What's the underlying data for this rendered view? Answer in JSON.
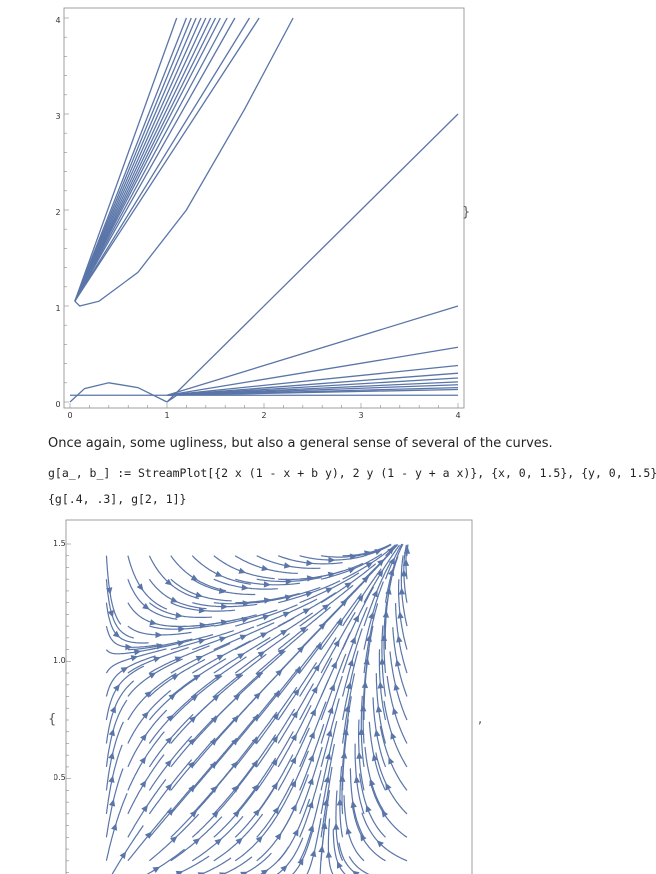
{
  "chart_data": [
    {
      "type": "line",
      "title": "",
      "xlabel": "",
      "ylabel": "",
      "xlim": [
        0,
        4
      ],
      "ylim": [
        0,
        4
      ],
      "x_ticks": [
        "0",
        "1",
        "2",
        "3",
        "4"
      ],
      "y_ticks": [
        "0",
        "1",
        "2",
        "3",
        "4"
      ],
      "line_color": "#5a75a8",
      "series": [
        {
          "x": [
            0,
            0.15,
            0.4,
            0.7,
            1.0
          ],
          "y": [
            0.0,
            0.14,
            0.2,
            0.15,
            0.0
          ]
        },
        {
          "x": [
            0,
            1.0
          ],
          "y": [
            0.07,
            0.07
          ]
        },
        {
          "x": [
            1.0,
            1.1,
            4.0
          ],
          "y": [
            0.0,
            0.07,
            0.07
          ]
        },
        {
          "x": [
            1.0,
            4.0
          ],
          "y": [
            0.0,
            3.0
          ]
        },
        {
          "x": [
            1.0,
            4.0
          ],
          "y": [
            0.07,
            1.0
          ]
        },
        {
          "x": [
            1.0,
            4.0
          ],
          "y": [
            0.07,
            0.57
          ]
        },
        {
          "x": [
            1.0,
            4.0
          ],
          "y": [
            0.07,
            0.38
          ]
        },
        {
          "x": [
            1.0,
            4.0
          ],
          "y": [
            0.07,
            0.3
          ]
        },
        {
          "x": [
            1.0,
            4.0
          ],
          "y": [
            0.07,
            0.25
          ]
        },
        {
          "x": [
            1.0,
            4.0
          ],
          "y": [
            0.07,
            0.21
          ]
        },
        {
          "x": [
            1.0,
            4.0
          ],
          "y": [
            0.07,
            0.18
          ]
        },
        {
          "x": [
            1.0,
            4.0
          ],
          "y": [
            0.07,
            0.15
          ]
        },
        {
          "x": [
            1.0,
            4.0
          ],
          "y": [
            0.07,
            0.13
          ]
        },
        {
          "x": [
            0.05,
            0.1,
            0.3,
            0.7,
            1.2,
            1.8,
            2.3
          ],
          "y": [
            1.05,
            1.0,
            1.05,
            1.35,
            2.0,
            3.05,
            4.0
          ]
        },
        {
          "x": [
            0.05,
            1.2
          ],
          "y": [
            1.05,
            4.0
          ]
        },
        {
          "x": [
            0.05,
            1.25
          ],
          "y": [
            1.05,
            4.0
          ]
        },
        {
          "x": [
            0.05,
            1.3
          ],
          "y": [
            1.05,
            4.0
          ]
        },
        {
          "x": [
            0.05,
            1.35
          ],
          "y": [
            1.05,
            4.0
          ]
        },
        {
          "x": [
            0.05,
            1.4
          ],
          "y": [
            1.05,
            4.0
          ]
        },
        {
          "x": [
            0.05,
            1.45
          ],
          "y": [
            1.05,
            4.0
          ]
        },
        {
          "x": [
            0.05,
            1.5
          ],
          "y": [
            1.05,
            4.0
          ]
        },
        {
          "x": [
            0.05,
            1.55
          ],
          "y": [
            1.05,
            4.0
          ]
        },
        {
          "x": [
            0.05,
            1.62
          ],
          "y": [
            1.05,
            4.0
          ]
        },
        {
          "x": [
            0.05,
            1.7
          ],
          "y": [
            1.05,
            4.0
          ]
        },
        {
          "x": [
            0.05,
            1.85
          ],
          "y": [
            1.05,
            4.0
          ]
        },
        {
          "x": [
            0.05,
            1.95
          ],
          "y": [
            1.05,
            4.0
          ]
        },
        {
          "x": [
            0.05,
            1.1
          ],
          "y": [
            1.05,
            4.0
          ]
        }
      ]
    },
    {
      "type": "streamplot",
      "title": "",
      "xlabel": "",
      "ylabel": "",
      "xlim": [
        0,
        1.5
      ],
      "ylim": [
        0,
        1.5
      ],
      "y_ticks": [
        "0.5",
        "1.0",
        "1.5"
      ],
      "y_tick_values": [
        0.5,
        1.0,
        1.5
      ],
      "line_color": "#5a75a8",
      "params": {
        "a": 0.4,
        "b": 0.3
      }
    }
  ],
  "text": {
    "paragraph": "Once again, some ugliness, but also a general sense of several of the curves.",
    "code_line_1": "g[a_, b_] := StreamPlot[{2 x (1 - x + b y), 2 y (1 - y + a x)}, {x, 0, 1.5}, {y, 0, 1.5}]",
    "code_line_2": "{g[.4, .3], g[2, 1]}",
    "open_brace": "{",
    "comma": ",",
    "close_brace_top": "}"
  }
}
